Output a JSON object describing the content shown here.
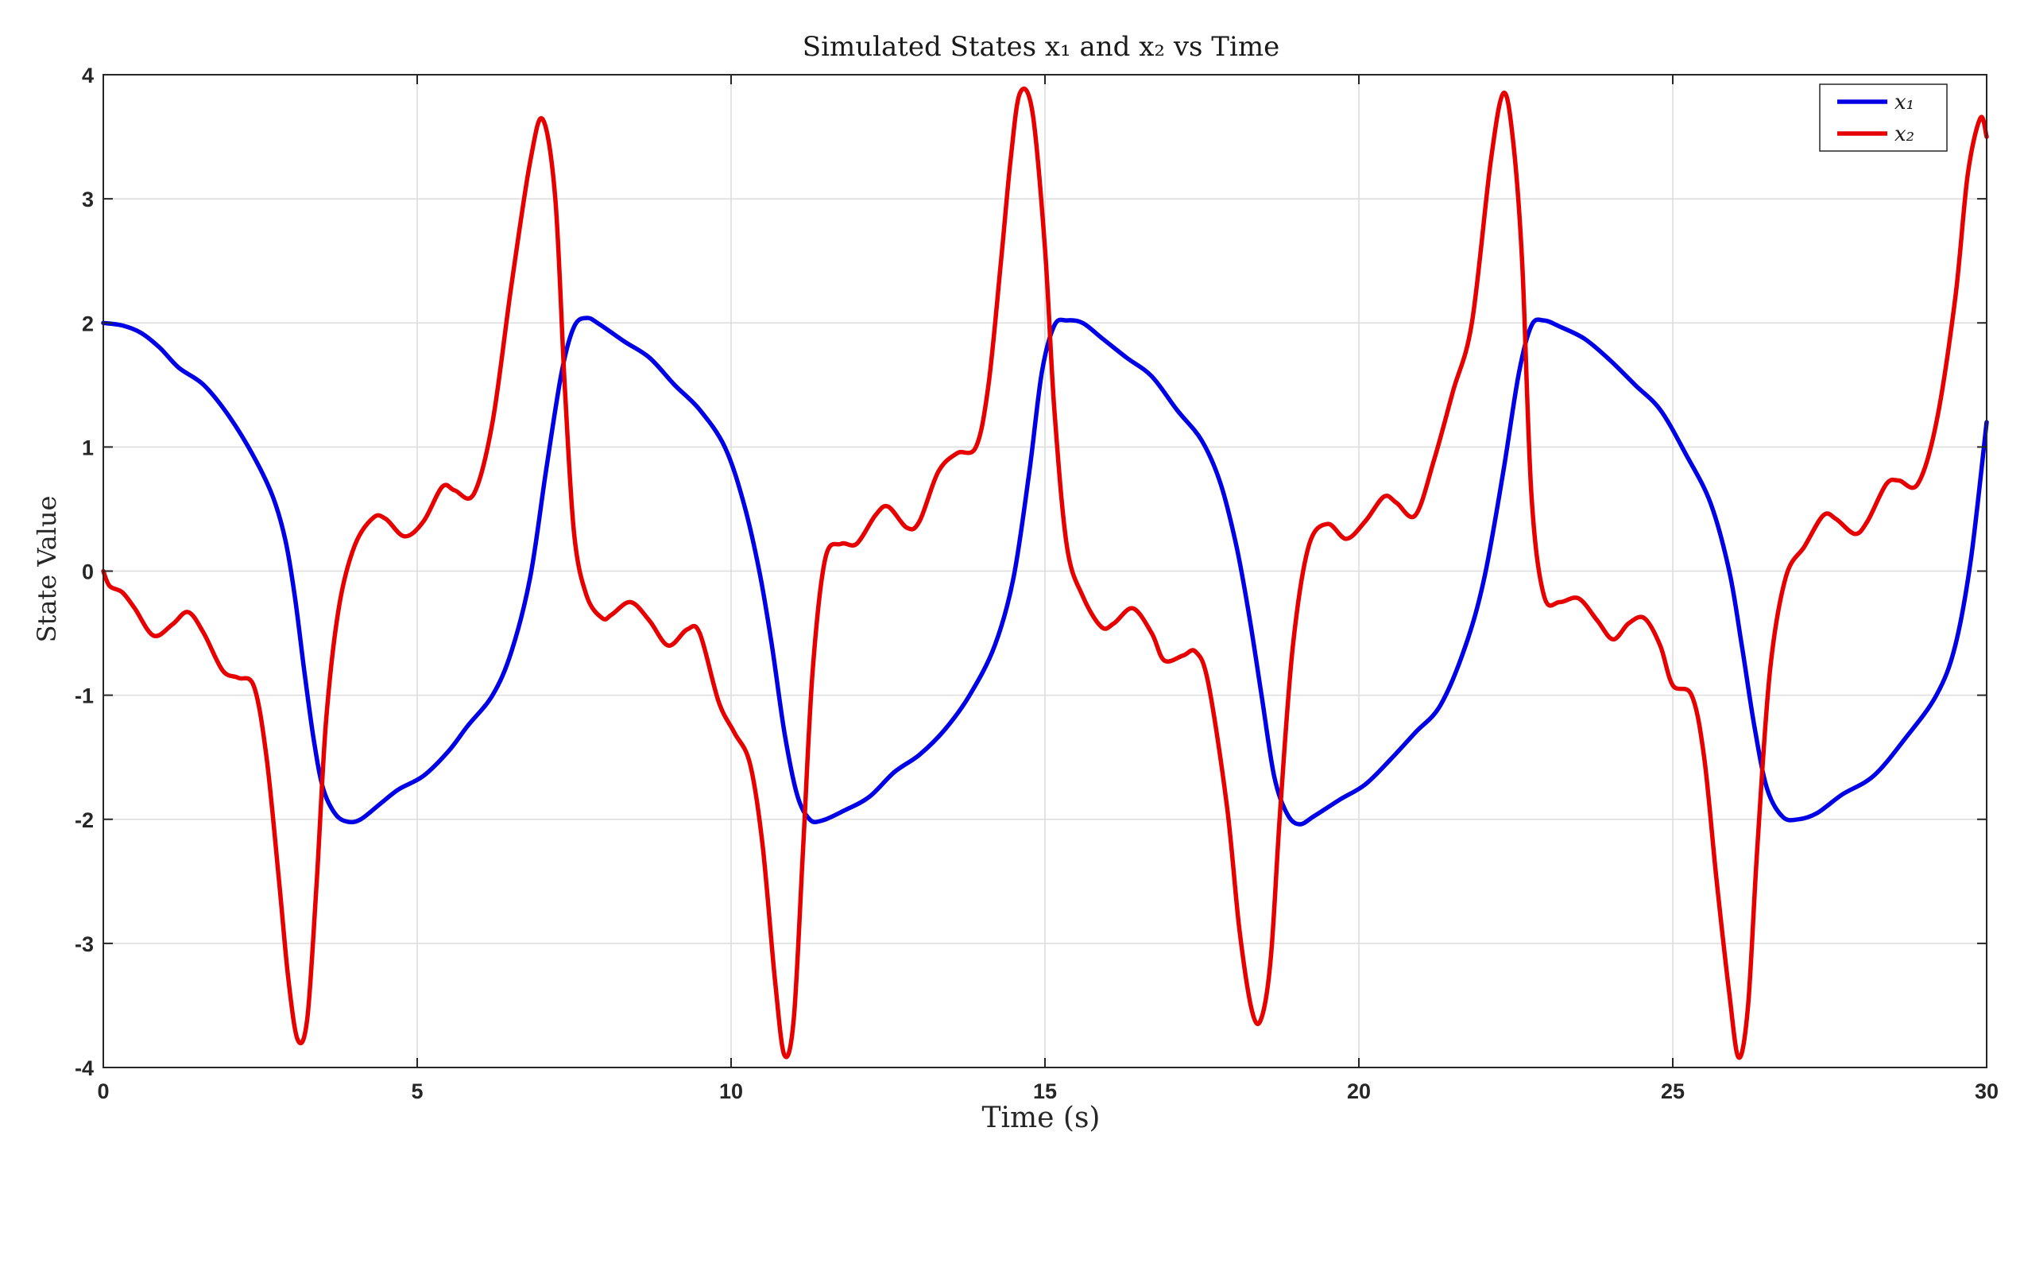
{
  "chart_data": {
    "type": "line",
    "title": "Simulated States x₁ and x₂ vs Time",
    "xlabel": "Time (s)",
    "ylabel": "State Value",
    "xlim": [
      0,
      30
    ],
    "ylim": [
      -4,
      4
    ],
    "xticks": [
      "0",
      "5",
      "10",
      "15",
      "20",
      "25",
      "30"
    ],
    "yticks": [
      "4",
      "3",
      "2",
      "1",
      "0",
      "-1",
      "-2",
      "-3",
      "-4"
    ],
    "grid": true,
    "legend_position": "top-right",
    "series": [
      {
        "name": "x₁",
        "color": "#0000e6",
        "points": [
          [
            0,
            2.0
          ],
          [
            0.3,
            1.98
          ],
          [
            0.6,
            1.92
          ],
          [
            0.9,
            1.8
          ],
          [
            1.2,
            1.64
          ],
          [
            1.6,
            1.5
          ],
          [
            2.0,
            1.25
          ],
          [
            2.4,
            0.92
          ],
          [
            2.7,
            0.6
          ],
          [
            2.9,
            0.25
          ],
          [
            3.05,
            -0.2
          ],
          [
            3.2,
            -0.8
          ],
          [
            3.35,
            -1.35
          ],
          [
            3.5,
            -1.75
          ],
          [
            3.7,
            -1.96
          ],
          [
            3.9,
            -2.02
          ],
          [
            4.1,
            -2.0
          ],
          [
            4.4,
            -1.88
          ],
          [
            4.7,
            -1.76
          ],
          [
            5.1,
            -1.65
          ],
          [
            5.5,
            -1.45
          ],
          [
            5.8,
            -1.25
          ],
          [
            6.2,
            -1.0
          ],
          [
            6.5,
            -0.65
          ],
          [
            6.8,
            -0.05
          ],
          [
            7.05,
            0.8
          ],
          [
            7.3,
            1.6
          ],
          [
            7.5,
            1.97
          ],
          [
            7.7,
            2.04
          ],
          [
            7.9,
            1.99
          ],
          [
            8.3,
            1.85
          ],
          [
            8.7,
            1.72
          ],
          [
            9.1,
            1.5
          ],
          [
            9.5,
            1.3
          ],
          [
            9.9,
            1.0
          ],
          [
            10.2,
            0.55
          ],
          [
            10.45,
            0.0
          ],
          [
            10.65,
            -0.6
          ],
          [
            10.85,
            -1.3
          ],
          [
            11.05,
            -1.8
          ],
          [
            11.25,
            -2.0
          ],
          [
            11.45,
            -2.01
          ],
          [
            11.8,
            -1.93
          ],
          [
            12.2,
            -1.82
          ],
          [
            12.6,
            -1.62
          ],
          [
            13.0,
            -1.48
          ],
          [
            13.4,
            -1.28
          ],
          [
            13.8,
            -1.0
          ],
          [
            14.2,
            -0.6
          ],
          [
            14.5,
            -0.05
          ],
          [
            14.75,
            0.8
          ],
          [
            14.95,
            1.6
          ],
          [
            15.15,
            1.98
          ],
          [
            15.35,
            2.02
          ],
          [
            15.6,
            2.0
          ],
          [
            15.9,
            1.88
          ],
          [
            16.3,
            1.72
          ],
          [
            16.7,
            1.57
          ],
          [
            17.1,
            1.3
          ],
          [
            17.5,
            1.05
          ],
          [
            17.8,
            0.7
          ],
          [
            18.05,
            0.2
          ],
          [
            18.25,
            -0.35
          ],
          [
            18.45,
            -1.0
          ],
          [
            18.65,
            -1.65
          ],
          [
            18.85,
            -1.95
          ],
          [
            19.05,
            -2.04
          ],
          [
            19.3,
            -1.97
          ],
          [
            19.7,
            -1.84
          ],
          [
            20.1,
            -1.72
          ],
          [
            20.5,
            -1.52
          ],
          [
            20.9,
            -1.3
          ],
          [
            21.3,
            -1.08
          ],
          [
            21.7,
            -0.6
          ],
          [
            22.0,
            -0.05
          ],
          [
            22.3,
            0.8
          ],
          [
            22.55,
            1.6
          ],
          [
            22.75,
            1.98
          ],
          [
            22.95,
            2.02
          ],
          [
            23.2,
            1.97
          ],
          [
            23.6,
            1.87
          ],
          [
            24.0,
            1.7
          ],
          [
            24.4,
            1.5
          ],
          [
            24.8,
            1.3
          ],
          [
            25.2,
            0.95
          ],
          [
            25.6,
            0.55
          ],
          [
            25.9,
            0.0
          ],
          [
            26.1,
            -0.6
          ],
          [
            26.3,
            -1.25
          ],
          [
            26.5,
            -1.75
          ],
          [
            26.75,
            -1.98
          ],
          [
            27.0,
            -2.0
          ],
          [
            27.3,
            -1.95
          ],
          [
            27.7,
            -1.8
          ],
          [
            28.2,
            -1.65
          ],
          [
            28.7,
            -1.35
          ],
          [
            29.2,
            -1.0
          ],
          [
            29.5,
            -0.6
          ],
          [
            29.75,
            0.1
          ],
          [
            30.0,
            1.2
          ]
        ]
      },
      {
        "name": "x₂",
        "color": "#e60000",
        "points": [
          [
            0,
            0.0
          ],
          [
            0.1,
            -0.12
          ],
          [
            0.3,
            -0.17
          ],
          [
            0.5,
            -0.3
          ],
          [
            0.8,
            -0.52
          ],
          [
            1.1,
            -0.43
          ],
          [
            1.35,
            -0.33
          ],
          [
            1.6,
            -0.5
          ],
          [
            1.9,
            -0.8
          ],
          [
            2.15,
            -0.86
          ],
          [
            2.4,
            -0.93
          ],
          [
            2.6,
            -1.5
          ],
          [
            2.8,
            -2.5
          ],
          [
            2.95,
            -3.3
          ],
          [
            3.1,
            -3.78
          ],
          [
            3.25,
            -3.6
          ],
          [
            3.4,
            -2.5
          ],
          [
            3.55,
            -1.2
          ],
          [
            3.75,
            -0.3
          ],
          [
            4.0,
            0.2
          ],
          [
            4.3,
            0.43
          ],
          [
            4.5,
            0.42
          ],
          [
            4.8,
            0.28
          ],
          [
            5.1,
            0.4
          ],
          [
            5.4,
            0.68
          ],
          [
            5.6,
            0.65
          ],
          [
            5.9,
            0.62
          ],
          [
            6.2,
            1.2
          ],
          [
            6.5,
            2.3
          ],
          [
            6.8,
            3.3
          ],
          [
            7.0,
            3.64
          ],
          [
            7.2,
            3.0
          ],
          [
            7.35,
            1.5
          ],
          [
            7.5,
            0.3
          ],
          [
            7.7,
            -0.2
          ],
          [
            7.95,
            -0.38
          ],
          [
            8.1,
            -0.35
          ],
          [
            8.4,
            -0.25
          ],
          [
            8.7,
            -0.4
          ],
          [
            9.0,
            -0.6
          ],
          [
            9.3,
            -0.47
          ],
          [
            9.5,
            -0.5
          ],
          [
            9.8,
            -1.05
          ],
          [
            10.05,
            -1.3
          ],
          [
            10.3,
            -1.55
          ],
          [
            10.5,
            -2.2
          ],
          [
            10.7,
            -3.3
          ],
          [
            10.85,
            -3.9
          ],
          [
            11.0,
            -3.6
          ],
          [
            11.15,
            -2.2
          ],
          [
            11.3,
            -0.8
          ],
          [
            11.5,
            0.1
          ],
          [
            11.75,
            0.22
          ],
          [
            12.0,
            0.22
          ],
          [
            12.3,
            0.45
          ],
          [
            12.5,
            0.52
          ],
          [
            12.8,
            0.35
          ],
          [
            13.0,
            0.4
          ],
          [
            13.3,
            0.8
          ],
          [
            13.6,
            0.95
          ],
          [
            13.9,
            1.0
          ],
          [
            14.1,
            1.5
          ],
          [
            14.3,
            2.5
          ],
          [
            14.45,
            3.3
          ],
          [
            14.6,
            3.85
          ],
          [
            14.8,
            3.7
          ],
          [
            15.0,
            2.6
          ],
          [
            15.15,
            1.3
          ],
          [
            15.35,
            0.2
          ],
          [
            15.6,
            -0.2
          ],
          [
            15.9,
            -0.45
          ],
          [
            16.1,
            -0.42
          ],
          [
            16.4,
            -0.3
          ],
          [
            16.7,
            -0.5
          ],
          [
            16.9,
            -0.72
          ],
          [
            17.2,
            -0.68
          ],
          [
            17.4,
            -0.65
          ],
          [
            17.6,
            -0.9
          ],
          [
            17.9,
            -1.9
          ],
          [
            18.1,
            -2.9
          ],
          [
            18.3,
            -3.55
          ],
          [
            18.45,
            -3.6
          ],
          [
            18.6,
            -3.1
          ],
          [
            18.75,
            -1.9
          ],
          [
            18.95,
            -0.6
          ],
          [
            19.2,
            0.2
          ],
          [
            19.5,
            0.38
          ],
          [
            19.8,
            0.26
          ],
          [
            20.1,
            0.4
          ],
          [
            20.4,
            0.6
          ],
          [
            20.6,
            0.55
          ],
          [
            20.9,
            0.45
          ],
          [
            21.2,
            0.9
          ],
          [
            21.5,
            1.45
          ],
          [
            21.8,
            2.0
          ],
          [
            22.1,
            3.3
          ],
          [
            22.3,
            3.85
          ],
          [
            22.45,
            3.5
          ],
          [
            22.6,
            2.5
          ],
          [
            22.75,
            0.6
          ],
          [
            22.95,
            -0.2
          ],
          [
            23.2,
            -0.25
          ],
          [
            23.5,
            -0.22
          ],
          [
            23.8,
            -0.4
          ],
          [
            24.05,
            -0.55
          ],
          [
            24.3,
            -0.42
          ],
          [
            24.55,
            -0.38
          ],
          [
            24.8,
            -0.6
          ],
          [
            25.0,
            -0.92
          ],
          [
            25.3,
            -1.0
          ],
          [
            25.5,
            -1.5
          ],
          [
            25.7,
            -2.5
          ],
          [
            25.9,
            -3.4
          ],
          [
            26.05,
            -3.92
          ],
          [
            26.2,
            -3.5
          ],
          [
            26.35,
            -2.2
          ],
          [
            26.55,
            -0.8
          ],
          [
            26.8,
            -0.05
          ],
          [
            27.1,
            0.2
          ],
          [
            27.4,
            0.45
          ],
          [
            27.6,
            0.42
          ],
          [
            27.9,
            0.3
          ],
          [
            28.1,
            0.4
          ],
          [
            28.4,
            0.7
          ],
          [
            28.6,
            0.73
          ],
          [
            28.9,
            0.7
          ],
          [
            29.2,
            1.2
          ],
          [
            29.5,
            2.2
          ],
          [
            29.7,
            3.2
          ],
          [
            29.9,
            3.65
          ],
          [
            30.0,
            3.5
          ]
        ]
      }
    ]
  }
}
